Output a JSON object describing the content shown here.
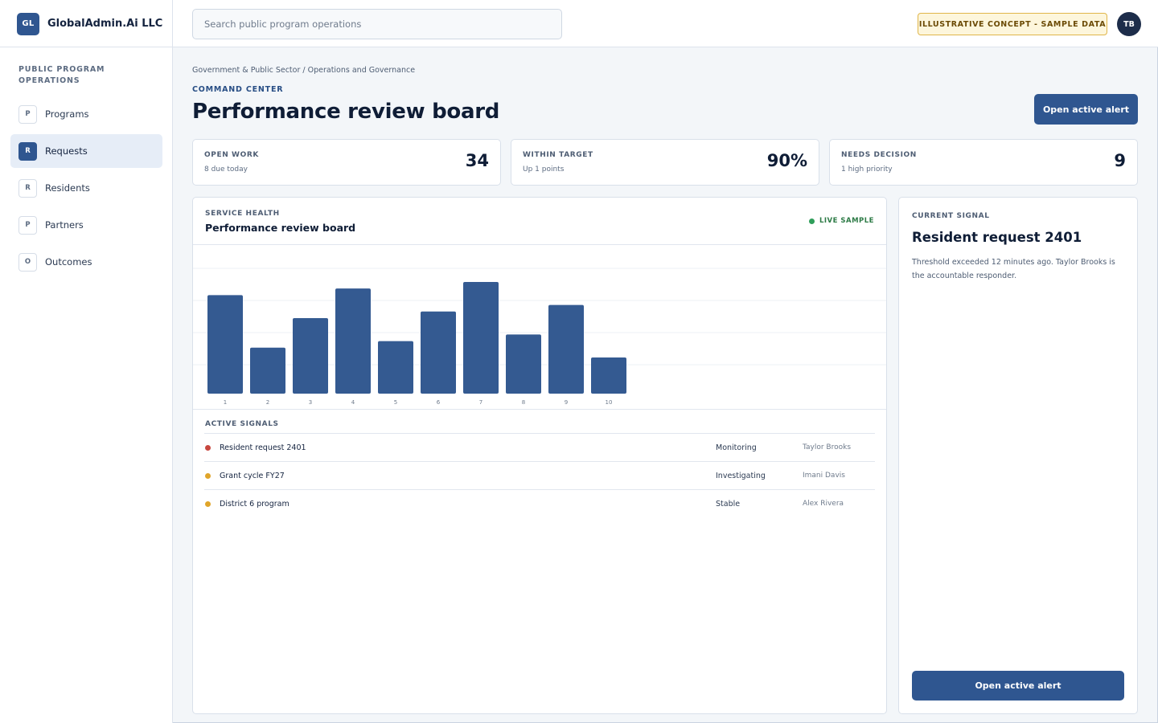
{
  "brand": {
    "logo": "GL",
    "name": "GlobalAdmin.Ai LLC"
  },
  "search": {
    "placeholder": "Search public program operations"
  },
  "badge": {
    "label": "ILLUSTRATIVE CONCEPT - SAMPLE DATA"
  },
  "user": {
    "initials": "TB"
  },
  "sidebar": {
    "heading": "PUBLIC PROGRAM OPERATIONS",
    "items": [
      {
        "letter": "P",
        "label": "Programs",
        "active": false
      },
      {
        "letter": "R",
        "label": "Requests",
        "active": true
      },
      {
        "letter": "R",
        "label": "Residents",
        "active": false
      },
      {
        "letter": "P",
        "label": "Partners",
        "active": false
      },
      {
        "letter": "O",
        "label": "Outcomes",
        "active": false
      }
    ]
  },
  "header": {
    "breadcrumb": "Government & Public Sector / Operations and Governance",
    "eyebrow": "COMMAND CENTER",
    "title": "Performance review board",
    "action_label": "Open active alert"
  },
  "kpis": [
    {
      "label": "OPEN WORK",
      "sub": "8 due today",
      "value": "34"
    },
    {
      "label": "WITHIN TARGET",
      "sub": "Up 1 points",
      "value": "90%"
    },
    {
      "label": "NEEDS DECISION",
      "sub": "1 high priority",
      "value": "9"
    }
  ],
  "panel": {
    "eyebrow": "SERVICE HEALTH",
    "title": "Performance review board",
    "live_label": "LIVE SAMPLE",
    "signals_heading": "ACTIVE SIGNALS",
    "signals": [
      {
        "name": "Resident request 2401",
        "status": "Monitoring",
        "owner": "Taylor Brooks",
        "color": "#c8473f"
      },
      {
        "name": "Grant cycle FY27",
        "status": "Investigating",
        "owner": "Imani Davis",
        "color": "#e0a52a"
      },
      {
        "name": "District 6 program",
        "status": "Stable",
        "owner": "Alex Rivera",
        "color": "#e0a52a"
      }
    ]
  },
  "chart_data": {
    "type": "bar",
    "categories": [
      "1",
      "2",
      "3",
      "4",
      "5",
      "6",
      "7",
      "8",
      "9",
      "10"
    ],
    "values": [
      60,
      28,
      46,
      64,
      32,
      50,
      68,
      36,
      54,
      22
    ],
    "ylim": [
      0,
      90
    ],
    "grid": true,
    "bar_color": "#345a91"
  },
  "side": {
    "eyebrow": "CURRENT SIGNAL",
    "title": "Resident request 2401",
    "description": "Threshold exceeded 12 minutes ago. Taylor Brooks is the accountable responder.",
    "action_label": "Open active alert"
  },
  "colors": {
    "accent": "#2f5690",
    "live": "#2f9e5a",
    "badge_border": "#e0b64a"
  }
}
